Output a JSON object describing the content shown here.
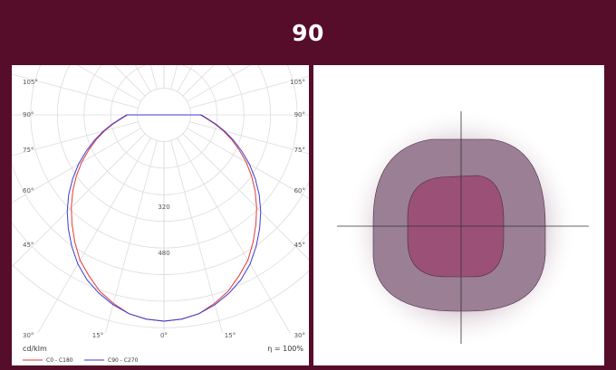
{
  "header": {
    "title": "90"
  },
  "chart_data": [
    {
      "type": "polar",
      "title": "",
      "unit_label": "cd/klm",
      "efficiency_label": "η = 100%",
      "angle_labels_left": [
        "105°",
        "90°",
        "75°",
        "60°",
        "45°",
        "30°"
      ],
      "angle_labels_right": [
        "105°",
        "90°",
        "75°",
        "60°",
        "45°",
        "30°"
      ],
      "angle_labels_bottom": [
        "15°",
        "0°",
        "15°"
      ],
      "radial_labels": [
        "320",
        "480"
      ],
      "radial_max": 520,
      "series": [
        {
          "name": "C0 - C180",
          "color": "#e53935",
          "intensity_at_angle": [
            [
              0,
              465
            ],
            [
              5,
              462
            ],
            [
              10,
              455
            ],
            [
              15,
              440
            ],
            [
              20,
              423
            ],
            [
              25,
              400
            ],
            [
              30,
              378
            ],
            [
              35,
              350
            ],
            [
              40,
              322
            ],
            [
              45,
              295
            ],
            [
              50,
              268
            ],
            [
              55,
              241
            ],
            [
              60,
              214
            ],
            [
              65,
              187
            ],
            [
              70,
              162
            ],
            [
              75,
              138
            ],
            [
              80,
              116
            ],
            [
              85,
              96
            ],
            [
              90,
              82
            ]
          ]
        },
        {
          "name": "C90 - C270",
          "color": "#3b3bd6",
          "intensity_at_angle": [
            [
              0,
              465
            ],
            [
              5,
              462
            ],
            [
              10,
              455
            ],
            [
              15,
              443
            ],
            [
              20,
              428
            ],
            [
              25,
              410
            ],
            [
              30,
              388
            ],
            [
              35,
              362
            ],
            [
              40,
              335
            ],
            [
              45,
              308
            ],
            [
              50,
              280
            ],
            [
              55,
              251
            ],
            [
              60,
              222
            ],
            [
              65,
              193
            ],
            [
              70,
              166
            ],
            [
              75,
              141
            ],
            [
              80,
              118
            ],
            [
              85,
              98
            ],
            [
              90,
              84
            ]
          ]
        }
      ]
    },
    {
      "type": "illuminance-footprint",
      "zones": [
        {
          "name": "outer",
          "color": "#9b7f94"
        },
        {
          "name": "inner",
          "color": "#9b5077"
        }
      ]
    }
  ]
}
